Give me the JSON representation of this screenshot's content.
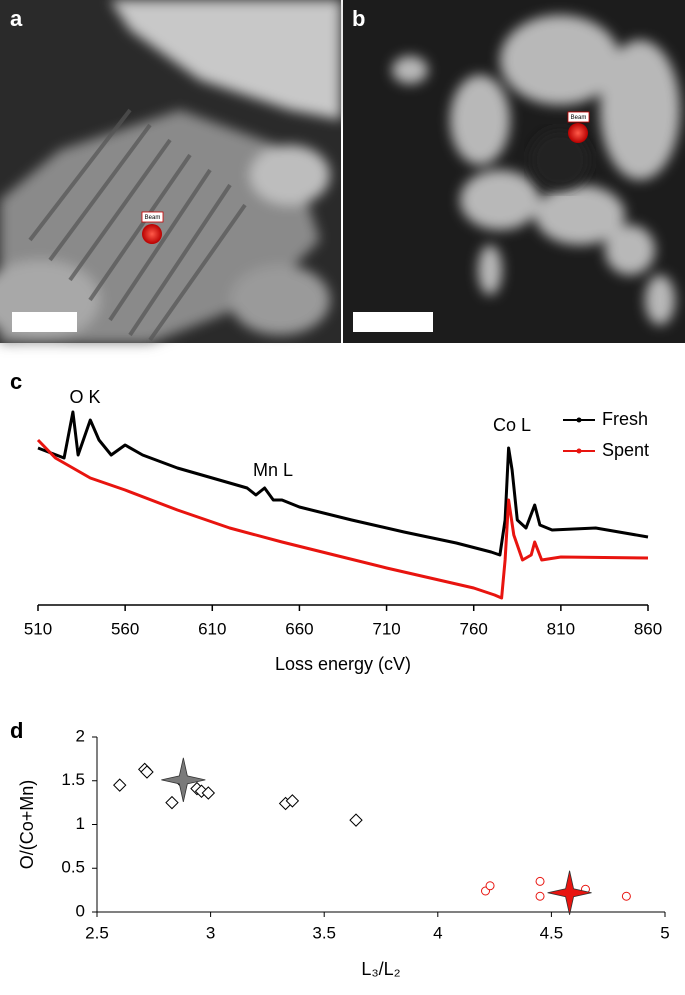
{
  "panels": [
    {
      "label": "a",
      "marker": "Beam"
    },
    {
      "label": "b",
      "marker": "Beam"
    }
  ],
  "chart_data": [
    {
      "type": "line",
      "panel": "c",
      "xlabel": "Loss energy (cV)",
      "xlim": [
        510,
        860
      ],
      "xticks": [
        510,
        560,
        610,
        660,
        710,
        760,
        810,
        860
      ],
      "ylim": [
        0,
        100
      ],
      "annotations": [
        "O K",
        "Mn L",
        "Co L"
      ],
      "series": [
        {
          "name": "Fresh",
          "color": "#000000",
          "x": [
            510,
            525,
            530,
            533,
            540,
            545,
            552,
            560,
            570,
            590,
            610,
            630,
            635,
            640,
            645,
            650,
            660,
            690,
            720,
            750,
            770,
            775,
            778,
            780,
            782,
            785,
            790,
            795,
            798,
            805,
            830,
            860
          ],
          "values": [
            78.5,
            73.5,
            96.5,
            75,
            92.5,
            82.5,
            75,
            80,
            75,
            68.5,
            63.5,
            58.5,
            55,
            58.5,
            52.5,
            52.5,
            49,
            42.5,
            36.5,
            31,
            26.5,
            25,
            42.5,
            78.5,
            67.5,
            42.5,
            38.5,
            50,
            40,
            37.5,
            38.5,
            34
          ]
        },
        {
          "name": "Spent",
          "color": "#e8140f",
          "x": [
            510,
            520,
            540,
            560,
            590,
            620,
            650,
            680,
            710,
            740,
            760,
            772,
            776,
            778,
            780,
            783,
            788,
            793,
            795,
            799,
            810,
            860
          ],
          "values": [
            82.5,
            73.5,
            63.5,
            57.5,
            47.5,
            38.5,
            31.5,
            25,
            18.5,
            12.5,
            8.5,
            5,
            3.5,
            22.5,
            52.5,
            35,
            22.5,
            25,
            31.5,
            22.5,
            24,
            23.5
          ]
        }
      ]
    },
    {
      "type": "scatter",
      "panel": "d",
      "xlabel": "L₃/L₂",
      "ylabel": "O/(Co+Mn)",
      "xlim": [
        2.5,
        5
      ],
      "xticks": [
        2.5,
        3,
        3.5,
        4,
        4.5,
        5
      ],
      "ylim": [
        0,
        2
      ],
      "yticks": [
        0,
        0.5,
        1,
        1.5,
        2
      ],
      "series": [
        {
          "color": "#000000",
          "marker": "diamond",
          "x": [
            2.6,
            2.71,
            2.72,
            2.83,
            2.87,
            2.94,
            2.96,
            2.99,
            3.33,
            3.36,
            3.64
          ],
          "values": [
            1.45,
            1.63,
            1.6,
            1.25,
            1.5,
            1.41,
            1.38,
            1.36,
            1.24,
            1.27,
            1.05
          ]
        },
        {
          "color": "#7a7a7a",
          "marker": "star",
          "x": [
            2.88
          ],
          "values": [
            1.51
          ]
        },
        {
          "color": "#e8140f",
          "marker": "circle",
          "x": [
            4.21,
            4.23,
            4.45,
            4.45,
            4.65,
            4.83
          ],
          "values": [
            0.24,
            0.3,
            0.35,
            0.18,
            0.26,
            0.18
          ]
        },
        {
          "color": "#e8140f",
          "marker": "star",
          "x": [
            4.58
          ],
          "values": [
            0.22
          ]
        }
      ]
    }
  ]
}
